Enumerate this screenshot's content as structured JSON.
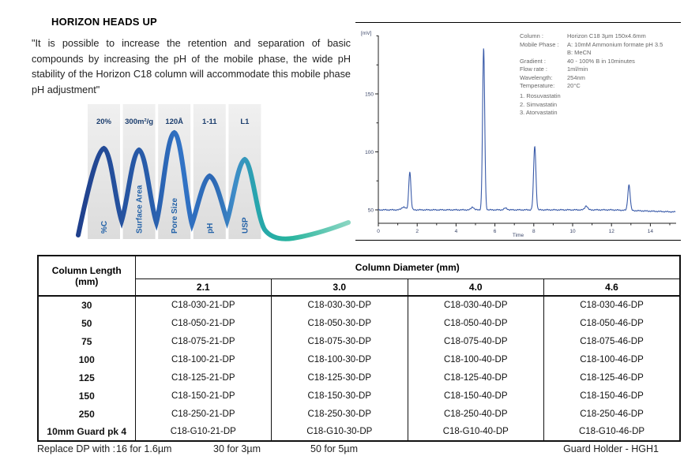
{
  "headsup": {
    "title": "HORIZON HEADS UP",
    "quote": "\"It is possible to increase the retention and separation of basic compounds by increasing the pH of the mobile phase, the wide pH stability of the Horizon C18 column will accommodate this mobile phase pH adjustment\""
  },
  "wave": {
    "bands": [
      {
        "value": "20%",
        "label": "%C"
      },
      {
        "value": "300m²/g",
        "label": "Surface Area"
      },
      {
        "value": "120Å",
        "label": "Pore Size"
      },
      {
        "value": "1-11",
        "label": "pH"
      },
      {
        "value": "L1",
        "label": "USP"
      }
    ],
    "colors": {
      "navy": "#20408c",
      "blue": "#2f6fc2",
      "teal": "#27b49e"
    }
  },
  "chart_data": {
    "type": "line",
    "xlabel": "Time",
    "ylabel": "[mV]",
    "xlim": [
      0,
      15.3
    ],
    "ylim": [
      45,
      205
    ],
    "x_ticks_labeled": [
      0,
      2,
      4,
      6,
      8,
      10,
      12,
      14
    ],
    "y_ticks_labeled": [
      50,
      100,
      150
    ],
    "grid": false,
    "line_color": "#3a5ba9",
    "baseline_mV": 50,
    "peaks": [
      {
        "time": 1.3,
        "height_mV": 52.5,
        "sigma": 0.1
      },
      {
        "time": 1.62,
        "height_mV": 83,
        "sigma": 0.055
      },
      {
        "time": 4.85,
        "height_mV": 52.5,
        "sigma": 0.07
      },
      {
        "time": 5.42,
        "height_mV": 189,
        "sigma": 0.055
      },
      {
        "time": 6.55,
        "height_mV": 51.5,
        "sigma": 0.08
      },
      {
        "time": 8.05,
        "height_mV": 105,
        "sigma": 0.06
      },
      {
        "time": 10.7,
        "height_mV": 53.5,
        "sigma": 0.07
      },
      {
        "time": 12.9,
        "height_mV": 72,
        "sigma": 0.06
      }
    ],
    "conditions": [
      {
        "label": "Column :",
        "value": "Horizon C18 3µm 150x4.6mm"
      },
      {
        "label": "Mobile Phase :",
        "value": "A: 10mM Ammonium formate pH 3.5"
      },
      {
        "label": "",
        "value": "B:  MeCN"
      },
      {
        "label": "Gradient :",
        "value": "40 - 100% B in 10minutes"
      },
      {
        "label": "Flow rate :",
        "value": "1ml/min"
      },
      {
        "label": "Wavelength:",
        "value": "254nm"
      },
      {
        "label": "Temperature:",
        "value": "20°C"
      }
    ],
    "compounds": [
      "1. Rosuvastatin",
      "2. Simvastatin",
      "3. Atorvastatin"
    ]
  },
  "table": {
    "corner_header": [
      "Column Length",
      "(mm)"
    ],
    "diameter_header": "Column Diameter (mm)",
    "diameters": [
      "2.1",
      "3.0",
      "4.0",
      "4.6"
    ],
    "rows": [
      {
        "length": "30",
        "parts": [
          "C18-030-21-DP",
          "C18-030-30-DP",
          "C18-030-40-DP",
          "C18-030-46-DP"
        ]
      },
      {
        "length": "50",
        "parts": [
          "C18-050-21-DP",
          "C18-050-30-DP",
          "C18-050-40-DP",
          "C18-050-46-DP"
        ]
      },
      {
        "length": "75",
        "parts": [
          "C18-075-21-DP",
          "C18-075-30-DP",
          "C18-075-40-DP",
          "C18-075-46-DP"
        ]
      },
      {
        "length": "100",
        "parts": [
          "C18-100-21-DP",
          "C18-100-30-DP",
          "C18-100-40-DP",
          "C18-100-46-DP"
        ]
      },
      {
        "length": "125",
        "parts": [
          "C18-125-21-DP",
          "C18-125-30-DP",
          "C18-125-40-DP",
          "C18-125-46-DP"
        ]
      },
      {
        "length": "150",
        "parts": [
          "C18-150-21-DP",
          "C18-150-30-DP",
          "C18-150-40-DP",
          "C18-150-46-DP"
        ]
      },
      {
        "length": "250",
        "parts": [
          "C18-250-21-DP",
          "C18-250-30-DP",
          "C18-250-40-DP",
          "C18-250-46-DP"
        ]
      },
      {
        "length": "10mm Guard pk 4",
        "parts": [
          "C18-G10-21-DP",
          "C18-G10-30-DP",
          "C18-G10-40-DP",
          "C18-G10-46-DP"
        ]
      }
    ]
  },
  "footer": {
    "replace_label": "Replace DP with :",
    "options": [
      "16 for 1.6µm",
      "30 for 3µm",
      "50 for 5µm"
    ],
    "guard_holder": "Guard Holder - HGH1"
  }
}
